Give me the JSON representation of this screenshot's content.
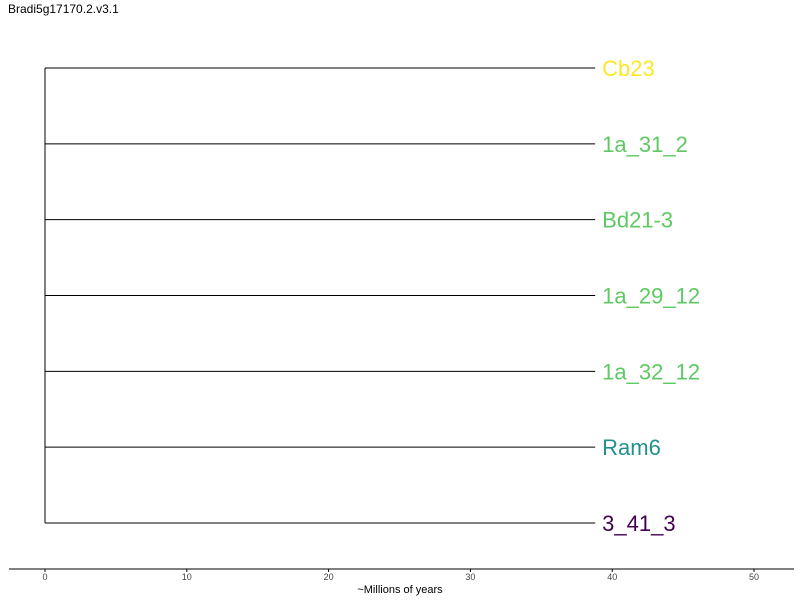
{
  "header": {
    "title": "Bradi5g17170.2.v3.1"
  },
  "chart_data": {
    "type": "dendrogram",
    "title": "Bradi5g17170.2.v3.1",
    "xlabel": "~Millions of years",
    "xlim": [
      0,
      50
    ],
    "x_ticks": [
      0,
      10,
      20,
      30,
      40,
      50
    ],
    "root_x": 0,
    "leaves": [
      {
        "label": "Cb23",
        "x": 38.8,
        "color": "#fde725"
      },
      {
        "label": "1a_31_2",
        "x": 38.8,
        "color": "#5ec962"
      },
      {
        "label": "Bd21-3",
        "x": 38.8,
        "color": "#5ec962"
      },
      {
        "label": "1a_29_12",
        "x": 38.8,
        "color": "#5ec962"
      },
      {
        "label": "1a_32_12",
        "x": 38.8,
        "color": "#5ec962"
      },
      {
        "label": "Ram6",
        "x": 38.8,
        "color": "#21918c"
      },
      {
        "label": "3_41_3",
        "x": 38.8,
        "color": "#440154"
      }
    ]
  }
}
